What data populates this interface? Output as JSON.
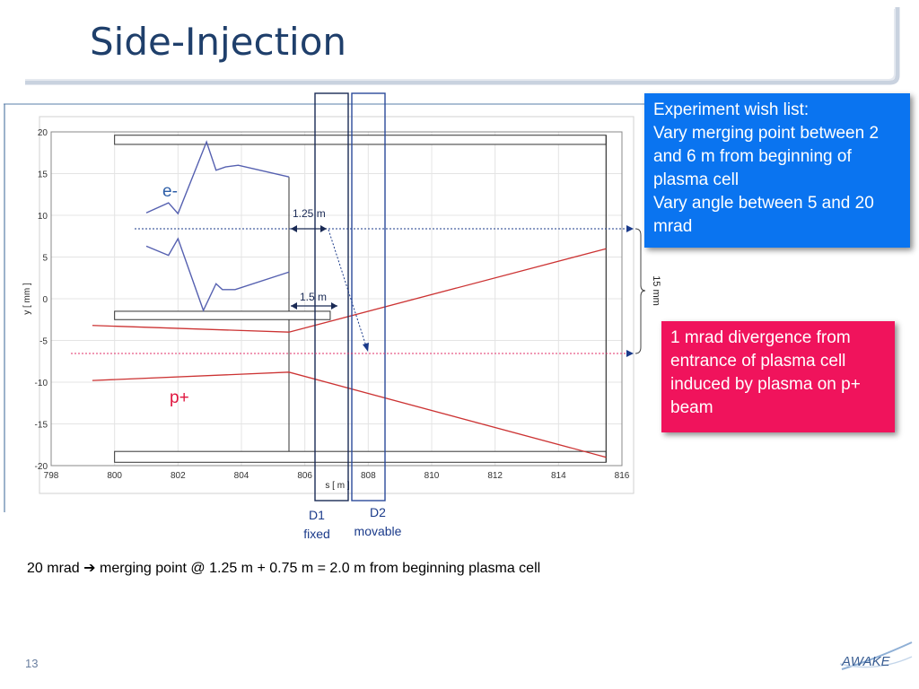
{
  "slide": {
    "title": "Side-Injection",
    "page_number": "13",
    "logo_text": "AWAKE",
    "bottom_note": {
      "prefix": "20 mrad",
      "arrow": "➔",
      "suffix": "merging point @ 1.25 m + 0.75 m = 2.0 m from beginning plasma cell"
    },
    "wish_box": {
      "lines": [
        "Experiment wish list:",
        "Vary merging point between 2 and 6 m from beginning of plasma cell",
        "Vary angle between 5 and 20 mrad"
      ]
    },
    "divergence_box": {
      "text": "1 mrad divergence from entrance of plasma cell induced by plasma on p+ beam"
    },
    "colors": {
      "title": "#1f3f6b",
      "blue_box": "#0a74f0",
      "pink_box": "#f0135c",
      "beam": "#cc3333",
      "electron": "#5560b0",
      "dipole": "#2a4a9a"
    }
  },
  "chart_data": {
    "type": "line",
    "xlabel": "s [ m ]",
    "ylabel": "y [ mm ]",
    "xlim": [
      798,
      816
    ],
    "ylim": [
      -20,
      20
    ],
    "xticks": [
      "798",
      "800",
      "802",
      "804",
      "806",
      "808",
      "810",
      "812",
      "814",
      "816"
    ],
    "yticks": [
      "20",
      "15",
      "10",
      "5",
      "0",
      "-5",
      "-10",
      "-15",
      "-20"
    ],
    "grid": true,
    "series": [
      {
        "name": "",
        "values_x": [
          799.3,
          805.5,
          815.5
        ],
        "values_y": [
          -3.2,
          -4.0,
          6.0
        ]
      },
      {
        "name": "",
        "values_x": [
          799.3,
          805.5,
          815.5
        ],
        "values_y": [
          -9.8,
          -8.8,
          -19.0
        ]
      }
    ],
    "electron_curves": [
      {
        "x": [
          801.0,
          801.7,
          802.0,
          802.9,
          803.2,
          803.5,
          803.9,
          805.5
        ],
        "y": [
          10.3,
          11.5,
          10.2,
          18.8,
          15.4,
          15.8,
          16.0,
          14.6
        ]
      },
      {
        "x": [
          801.0,
          801.7,
          802.0,
          802.8,
          803.2,
          803.4,
          803.8,
          805.5
        ],
        "y": [
          6.3,
          5.2,
          7.2,
          -1.4,
          1.8,
          1.1,
          1.1,
          3.2
        ]
      }
    ],
    "plasma_cell_top": {
      "x": [
        800,
        815.5
      ],
      "y": [
        18.5,
        19.6
      ]
    },
    "plasma_cell_bottom": {
      "x": [
        800,
        815.5
      ],
      "y": [
        -18.3,
        -19.6
      ]
    },
    "plasma_cell_left_edge": 800,
    "plasma_cell_right_edge": 815.5,
    "labels": {
      "electron": "e-",
      "proton": "p+",
      "d1": [
        "D1",
        "fixed"
      ],
      "d2": [
        "D2",
        "movable"
      ],
      "dist1": "1.25 m",
      "dist2": "1.5 m",
      "span": "15 mm"
    }
  }
}
